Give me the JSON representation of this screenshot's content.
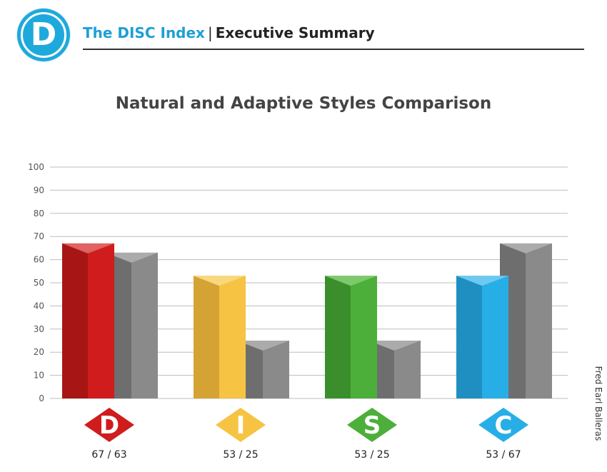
{
  "header": {
    "logo_letter": "D",
    "brand": "The DISC Index",
    "separator": "|",
    "section": "Executive Summary"
  },
  "side_label": "Fred Earl Balleras",
  "chart_data": {
    "type": "bar",
    "title": "Natural and Adaptive Styles Comparison",
    "ylim": [
      0,
      100
    ],
    "yticks": [
      0,
      10,
      20,
      30,
      40,
      50,
      60,
      70,
      80,
      90,
      100
    ],
    "grid": true,
    "categories": [
      "D",
      "I",
      "S",
      "C"
    ],
    "series": [
      {
        "values": [
          67,
          53,
          53,
          53
        ]
      },
      {
        "values": [
          63,
          25,
          25,
          67
        ]
      }
    ],
    "category_labels": [
      "67 / 63",
      "53 / 25",
      "53 / 25",
      "53 / 67"
    ],
    "colors": {
      "D": {
        "front": "#d01c1c",
        "side": "#a81515",
        "top": "#e06262"
      },
      "I": {
        "front": "#f6c343",
        "side": "#d4a334",
        "top": "#f8d77e"
      },
      "S": {
        "front": "#4caf3a",
        "side": "#3a8f2c",
        "top": "#7dc96c"
      },
      "C": {
        "front": "#28aee6",
        "side": "#1e8fc0",
        "top": "#6cc9ef"
      },
      "adaptive": {
        "front": "#8a8a8a",
        "side": "#6e6e6e",
        "top": "#ababab"
      }
    }
  }
}
